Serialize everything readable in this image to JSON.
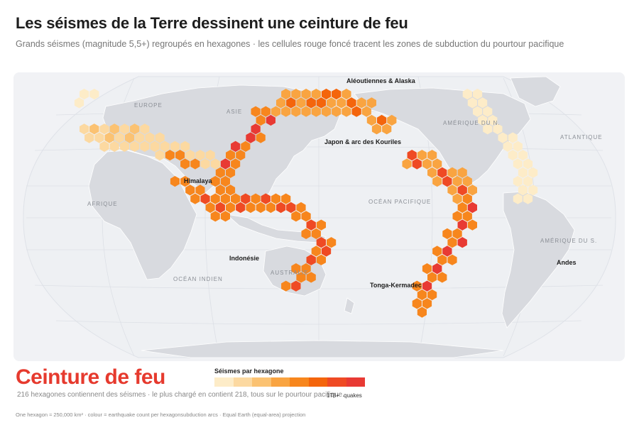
{
  "header": {
    "title": "Les séismes de la Terre dessinent une ceinture de feu",
    "subtitle": "Grands séismes (magnitude 5,5+) regroupés en hexagones · les cellules rouge foncé tracent les zones de subduction du pourtour pacifique"
  },
  "map": {
    "region_labels": [
      "EUROPE",
      "ASIE",
      "AFRIQUE",
      "AMÉRIQUE DU N.",
      "ATLANTIQUE",
      "OCÉAN PACIFIQUE",
      "AMÉRIQUE DU S.",
      "OCÉAN INDIEN",
      "AUSTRALIE"
    ],
    "callouts": [
      "Aléoutiennes & Alaska",
      "Japon & arc des Kouriles",
      "Himalaya",
      "Indonésie",
      "Tonga-Kermadec",
      "Andes"
    ],
    "colors": {
      "land": "#d8dadf",
      "ocean": "#f1f2f5",
      "graticule": "#dde0e6"
    },
    "bins": [
      {
        "n": 12,
        "cells": [
          [
            2,
            -6
          ],
          [
            3,
            -6
          ],
          [
            1,
            -5
          ]
        ]
      },
      {
        "n": 25,
        "cells": [
          [
            0,
            -4
          ],
          [
            1,
            -4
          ],
          [
            2,
            -4
          ],
          [
            3,
            -4
          ],
          [
            4,
            -4
          ],
          [
            5,
            -4
          ],
          [
            6,
            -4
          ],
          [
            1,
            -3
          ],
          [
            2,
            -3
          ],
          [
            3,
            -3
          ],
          [
            5,
            -3
          ],
          [
            6,
            -3
          ],
          [
            7,
            -3
          ],
          [
            0,
            -2
          ],
          [
            2,
            -2
          ],
          [
            4,
            -2
          ],
          [
            5,
            -2
          ],
          [
            6,
            -2
          ],
          [
            7,
            -2
          ]
        ]
      },
      {
        "n": 60,
        "cells": [
          [
            1,
            -5
          ],
          [
            3,
            -5
          ],
          [
            5,
            -5
          ],
          [
            7,
            -5
          ],
          [
            2,
            -4
          ],
          [
            4,
            -4
          ],
          [
            8,
            -4
          ],
          [
            9,
            -4
          ],
          [
            10,
            -4
          ],
          [
            11,
            -4
          ],
          [
            8,
            -3
          ],
          [
            9,
            -3
          ],
          [
            12,
            -3
          ]
        ]
      },
      {
        "n": 110,
        "cells": [
          [
            9,
            -3
          ],
          [
            10,
            -3
          ],
          [
            10,
            -2
          ],
          [
            11,
            -2
          ],
          [
            11,
            -1
          ],
          [
            12,
            -1
          ]
        ]
      },
      {
        "n": 165,
        "cells": [
          [
            13,
            -6
          ],
          [
            12,
            -5
          ],
          [
            12,
            -4
          ]
        ]
      }
    ]
  },
  "bottom": {
    "headline": "Ceinture de feu",
    "description": "216 hexagones contiennent des séismes · le plus chargé en contient 218, tous sur le pourtour pacifique.",
    "legend_title": "Séismes par hexagone",
    "legend_max": "178+",
    "legend_unit": "quakes",
    "legend_colors": [
      "#fdecc8",
      "#fcd9a1",
      "#fbc272",
      "#f9a441",
      "#f7861d",
      "#f4650c",
      "#ef4a24",
      "#e83a34"
    ],
    "footnote": "One hexagon ≈ 250,000 km² · colour = earthquake count per hexagonsubduction arcs · Equal Earth (equal-area) projection"
  }
}
